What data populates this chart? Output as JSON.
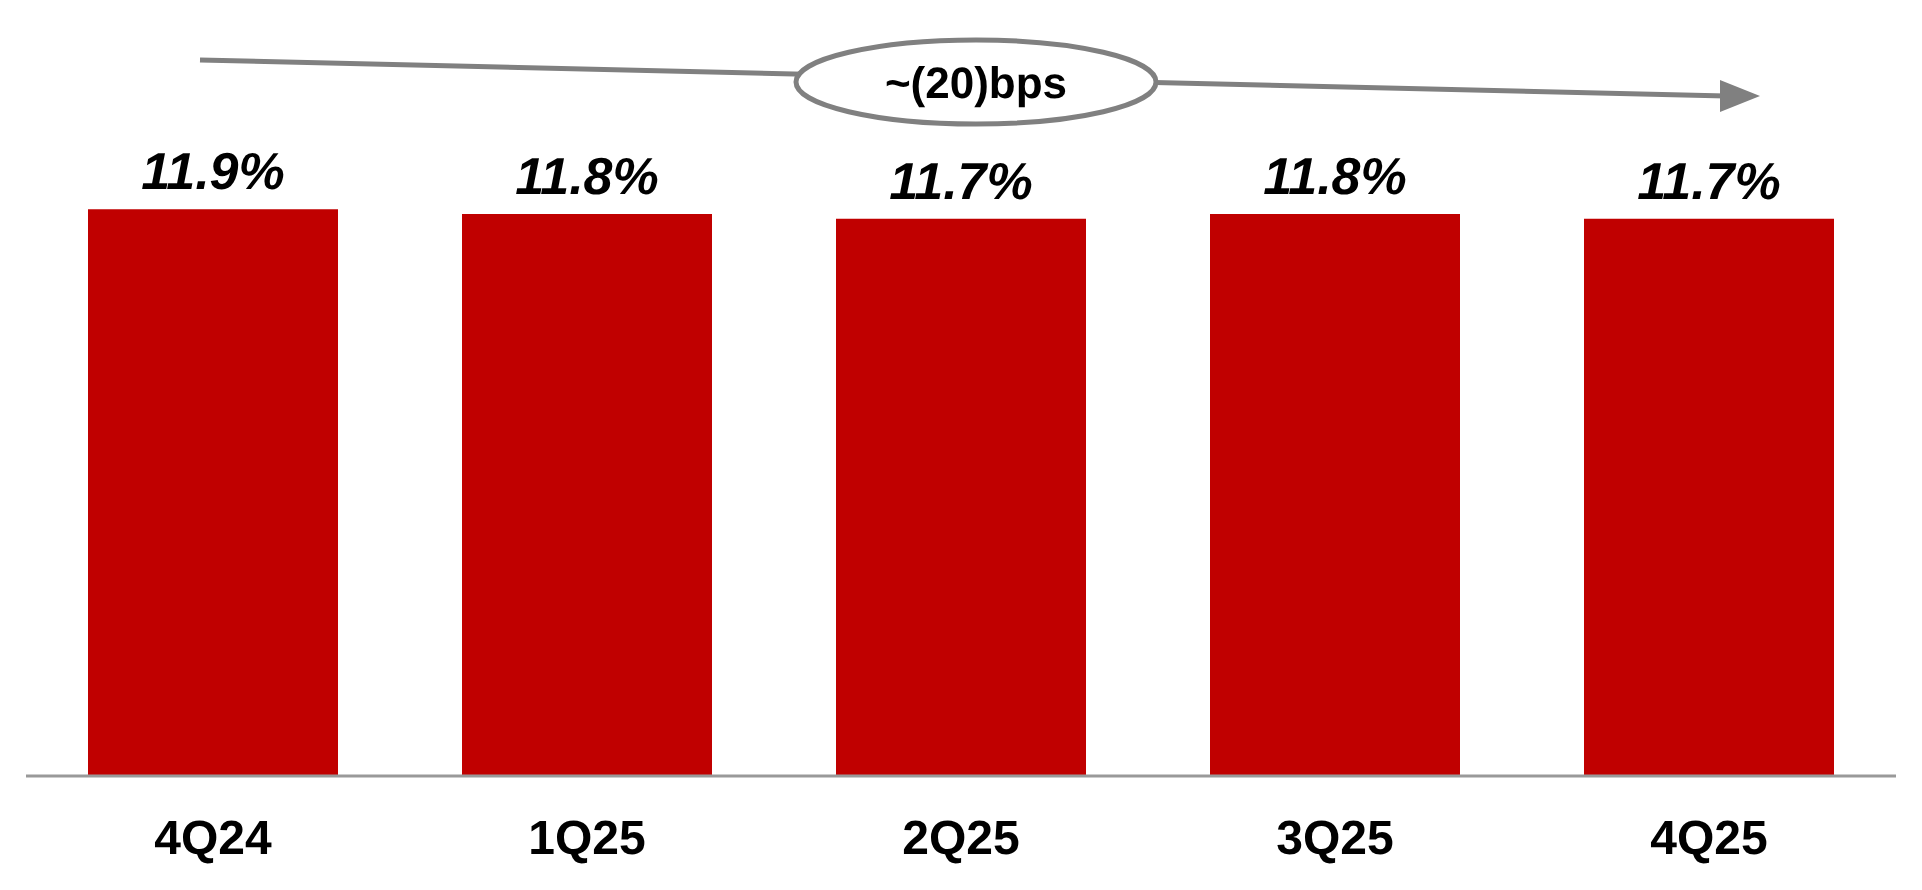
{
  "chart_data": {
    "type": "bar",
    "categories": [
      "4Q24",
      "1Q25",
      "2Q25",
      "3Q25",
      "4Q25"
    ],
    "values": [
      11.9,
      11.8,
      11.7,
      11.8,
      11.7
    ],
    "value_labels": [
      "11.9%",
      "11.8%",
      "11.7%",
      "11.8%",
      "11.7%"
    ],
    "color": "#c00000",
    "annotations": [
      "~(20)bps"
    ]
  }
}
